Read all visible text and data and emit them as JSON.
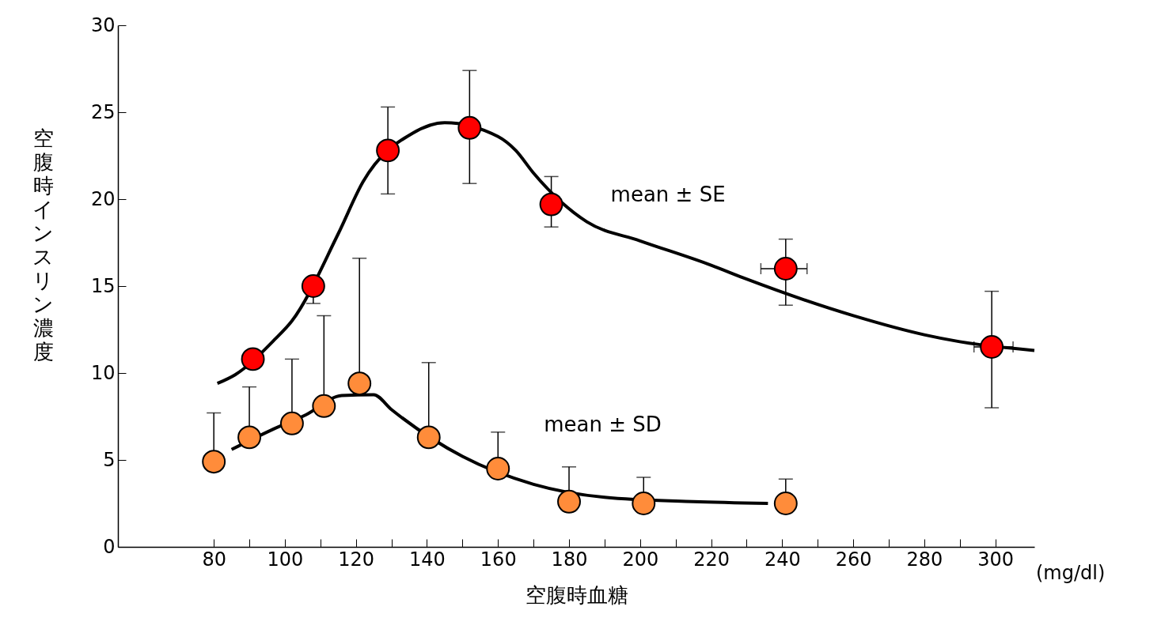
{
  "chart_data": {
    "type": "scatter",
    "xlabel": "空腹時血糖",
    "ylabel": "空腹時インスリン濃度",
    "xlim": [
      53,
      311
    ],
    "ylim": [
      0,
      30
    ],
    "xticks": [
      80,
      {
        "value": 90,
        "label": null
      },
      100,
      {
        "value": 110,
        "label": null
      },
      120,
      {
        "value": 130,
        "label": null
      },
      140,
      {
        "value": 150,
        "label": null
      },
      160,
      {
        "value": 170,
        "label": null
      },
      180,
      {
        "value": 190,
        "label": null
      },
      200,
      {
        "value": 210,
        "label": null
      },
      220,
      {
        "value": 230,
        "label": null
      },
      240,
      {
        "value": 250,
        "label": null
      },
      260,
      {
        "value": 270,
        "label": null
      },
      280,
      {
        "value": 290,
        "label": null
      },
      300
    ],
    "yticks": [
      0,
      5,
      10,
      15,
      20,
      25,
      30
    ],
    "grid": false,
    "marker": "circle",
    "series": [
      {
        "type": "line",
        "color": "#000000",
        "line_style": "solid",
        "marker": "none",
        "x": [
          81,
          86,
          97,
          102,
          115,
          122,
          136,
          145,
          160,
          165,
          170,
          185,
          200,
          220,
          230,
          260,
          280,
          290,
          311
        ],
        "values": [
          9.4,
          9.9,
          11.9,
          13.0,
          18.0,
          21.0,
          23.8,
          24.4,
          23.6,
          22.8,
          21.5,
          18.7,
          17.6,
          16.2,
          15.4,
          13.3,
          12.2,
          11.8,
          11.3
        ]
      },
      {
        "type": "line",
        "color": "#000000",
        "line_style": "solid",
        "marker": "none",
        "x": [
          85,
          96,
          106,
          116,
          125,
          130,
          150,
          170,
          190,
          215,
          236
        ],
        "values": [
          5.6,
          6.7,
          7.6,
          8.7,
          8.75,
          7.9,
          5.2,
          3.6,
          2.85,
          2.6,
          2.5
        ]
      },
      {
        "name": "mean ± SE",
        "color": "#ff0000",
        "x": [
          91,
          108,
          129,
          152,
          175,
          241,
          299
        ],
        "values": [
          10.8,
          15.0,
          22.8,
          24.1,
          19.7,
          16.0,
          11.5
        ],
        "errors": [
          null,
          [
            14.0,
            15.0
          ],
          [
            20.3,
            25.3
          ],
          [
            20.9,
            27.4
          ],
          [
            18.4,
            21.3
          ],
          [
            13.9,
            17.7
          ],
          [
            8.0,
            14.7
          ]
        ],
        "xerrors": [
          null,
          null,
          null,
          null,
          null,
          [
            234,
            247
          ],
          [
            294,
            305
          ]
        ]
      },
      {
        "name": "mean ± SD",
        "color": "#ff8c3a",
        "x": [
          80,
          90,
          102,
          111,
          121,
          140.5,
          160,
          180,
          201,
          241
        ],
        "values": [
          4.9,
          6.3,
          7.1,
          8.1,
          9.4,
          6.3,
          4.5,
          2.6,
          2.5,
          2.5
        ],
        "errors": [
          [
            4.9,
            7.7
          ],
          [
            6.3,
            9.2
          ],
          [
            7.1,
            10.8
          ],
          [
            8.1,
            13.3
          ],
          [
            9.4,
            16.6
          ],
          [
            6.3,
            10.6
          ],
          [
            4.5,
            6.6
          ],
          [
            2.6,
            4.6
          ],
          [
            2.5,
            4.0
          ],
          [
            2.5,
            3.9
          ]
        ]
      }
    ],
    "annotations": [
      "(mg/dl)"
    ]
  }
}
